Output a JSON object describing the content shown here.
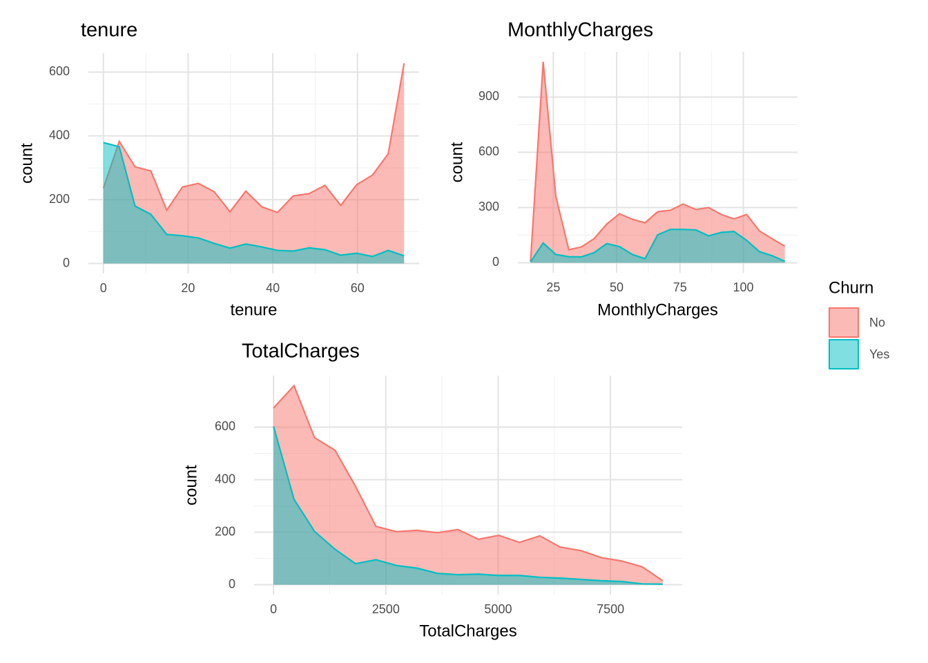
{
  "chart_data": [
    {
      "type": "area",
      "title": "tenure",
      "x_label": "tenure",
      "y_label": "count",
      "x": [
        0,
        3.74,
        7.47,
        11.21,
        14.95,
        18.68,
        22.42,
        26.16,
        29.89,
        33.63,
        37.37,
        41.11,
        44.84,
        48.58,
        52.32,
        56.05,
        59.79,
        63.53,
        67.26,
        71
      ],
      "series": [
        {
          "name": "No",
          "color": "#F8766D",
          "values": [
            236,
            383,
            303,
            290,
            167,
            240,
            251,
            225,
            162,
            227,
            178,
            160,
            212,
            219,
            245,
            182,
            247,
            277,
            344,
            628
          ]
        },
        {
          "name": "Yes",
          "color": "#00BFC4",
          "values": [
            379,
            366,
            180,
            154,
            91,
            87,
            80,
            63,
            48,
            61,
            52,
            41,
            39,
            49,
            43,
            26,
            32,
            22,
            41,
            24
          ]
        }
      ],
      "xlim": [
        -3.55,
        74.55
      ],
      "xticks": [
        0,
        20,
        40,
        60
      ],
      "ylim": [
        -31.4,
        659.4
      ],
      "yticks": [
        0,
        200,
        400,
        600
      ],
      "grid": true,
      "fill_opacity": 0.5
    },
    {
      "type": "area",
      "title": "MonthlyCharges",
      "x_label": "MonthlyCharges",
      "y_label": "count",
      "x": [
        16,
        21.0,
        26.0,
        31.1,
        36.1,
        41.1,
        46.1,
        51.1,
        56.2,
        61.2,
        66.2,
        71.2,
        76.2,
        81.3,
        86.3,
        91.3,
        96.3,
        101.3,
        106.4,
        111.4,
        116.4
      ],
      "series": [
        {
          "name": "No",
          "color": "#F8766D",
          "values": [
            5,
            1091,
            360,
            71,
            86,
            131,
            210,
            266,
            236,
            217,
            277,
            285,
            319,
            289,
            300,
            262,
            238,
            262,
            172,
            130,
            90
          ]
        },
        {
          "name": "Yes",
          "color": "#00BFC4",
          "values": [
            5,
            107,
            45,
            33,
            32,
            55,
            104,
            88,
            45,
            22,
            152,
            181,
            181,
            178,
            146,
            165,
            170,
            122,
            60,
            38,
            8
          ]
        }
      ],
      "xlim": [
        11.0,
        121.4
      ],
      "xticks": [
        25,
        50,
        75,
        100
      ],
      "ylim": [
        -54.5,
        1145.5
      ],
      "yticks": [
        0,
        300,
        600,
        900
      ],
      "grid": true,
      "fill_opacity": 0.5
    },
    {
      "type": "area",
      "title": "TotalCharges",
      "x_label": "TotalCharges",
      "y_label": "count",
      "x": [
        0,
        456,
        912,
        1368,
        1824,
        2280,
        2736,
        3192,
        3648,
        4104,
        4560,
        5016,
        5472,
        5928,
        6384,
        6840,
        7296,
        7752,
        8208,
        8664
      ],
      "series": [
        {
          "name": "No",
          "color": "#F8766D",
          "values": [
            673,
            758,
            560,
            512,
            375,
            222,
            202,
            207,
            198,
            210,
            173,
            188,
            161,
            186,
            143,
            130,
            103,
            90,
            68,
            15
          ]
        },
        {
          "name": "Yes",
          "color": "#00BFC4",
          "values": [
            603,
            325,
            203,
            135,
            80,
            95,
            73,
            63,
            43,
            38,
            40,
            35,
            35,
            28,
            25,
            20,
            15,
            12,
            3,
            2
          ]
        }
      ],
      "xlim": [
        -433,
        9097
      ],
      "xticks": [
        0,
        2500,
        5000,
        7500
      ],
      "ylim": [
        -37.9,
        795.9
      ],
      "yticks": [
        0,
        200,
        400,
        600
      ],
      "grid": true,
      "fill_opacity": 0.5
    }
  ],
  "legend": {
    "title": "Churn",
    "position": "right"
  }
}
